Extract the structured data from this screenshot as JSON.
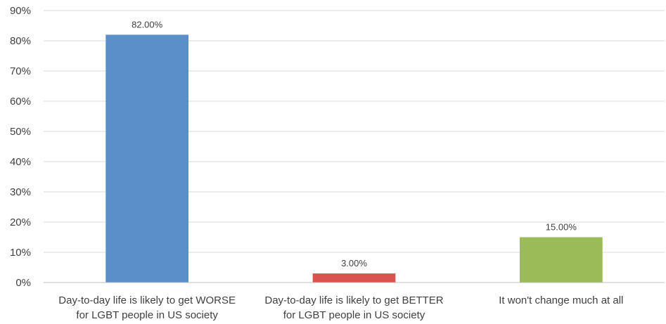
{
  "chart_data": {
    "type": "bar",
    "title": "",
    "xlabel": "",
    "ylabel": "",
    "categories": [
      [
        "Day-to-day life is likely to get WORSE",
        "for LGBT people in US society"
      ],
      [
        "Day-to-day life is likely to get BETTER",
        "for LGBT people in US society"
      ],
      [
        "It won't change much at all"
      ]
    ],
    "values": [
      82,
      3,
      15
    ],
    "data_labels": [
      "82.00%",
      "3.00%",
      "15.00%"
    ],
    "bar_colors": [
      "#5b8fc9",
      "#d9534f",
      "#9bbb59"
    ],
    "ylim": [
      0,
      90
    ],
    "yticks": [
      0,
      10,
      20,
      30,
      40,
      50,
      60,
      70,
      80,
      90
    ],
    "ytick_labels": [
      "0%",
      "10%",
      "20%",
      "30%",
      "40%",
      "50%",
      "60%",
      "70%",
      "80%",
      "90%"
    ],
    "grid": true,
    "legend": "none"
  }
}
